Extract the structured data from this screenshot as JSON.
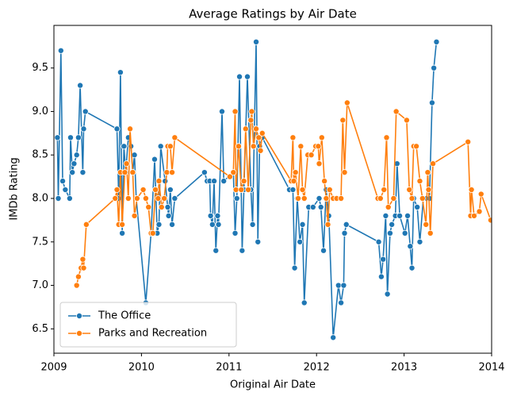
{
  "chart_data": {
    "type": "line",
    "title": "Average Ratings by Air Date",
    "x_label": "Original Air Date",
    "y_label": "IMDb Rating",
    "xlim": [
      2009,
      2014
    ],
    "xticks": [
      2009,
      2010,
      2011,
      2012,
      2013,
      2014
    ],
    "ylim": [
      6.22,
      9.99
    ],
    "yticks": [
      {
        "value": 6.5,
        "label": "6.5"
      },
      {
        "value": 7,
        "label": "7.0"
      },
      {
        "value": 7.5,
        "label": "7.5"
      },
      {
        "value": 8,
        "label": "8.0"
      },
      {
        "value": 8.5,
        "label": "8.5"
      },
      {
        "value": 9,
        "label": "9.0"
      },
      {
        "value": 9.5,
        "label": "9.5"
      }
    ],
    "grid": false,
    "legend": "lower left",
    "series": [
      {
        "name": "The Office",
        "color": "#1f77b4",
        "x": [
          2009.04,
          2009.05,
          2009.08,
          2009.1,
          2009.13,
          2009.18,
          2009.19,
          2009.21,
          2009.23,
          2009.26,
          2009.28,
          2009.3,
          2009.33,
          2009.34,
          2009.36,
          2009.72,
          2009.74,
          2009.76,
          2009.78,
          2009.8,
          2009.82,
          2009.85,
          2009.88,
          2009.9,
          2009.92,
          2009.94,
          2010.05,
          2010.11,
          2010.15,
          2010.18,
          2010.2,
          2010.22,
          2010.27,
          2010.3,
          2010.31,
          2010.33,
          2010.35,
          2010.38,
          2010.72,
          2010.75,
          2010.78,
          2010.79,
          2010.81,
          2010.83,
          2010.85,
          2010.87,
          2010.88,
          2010.92,
          2010.94,
          2011.05,
          2011.07,
          2011.09,
          2011.12,
          2011.15,
          2011.17,
          2011.21,
          2011.25,
          2011.27,
          2011.29,
          2011.31,
          2011.33,
          2011.35,
          2011.38,
          2011.69,
          2011.73,
          2011.75,
          2011.78,
          2011.81,
          2011.84,
          2011.86,
          2011.91,
          2011.96,
          2012.03,
          2012.05,
          2012.08,
          2012.11,
          2012.14,
          2012.19,
          2012.25,
          2012.28,
          2012.31,
          2012.32,
          2012.34,
          2012.71,
          2012.74,
          2012.76,
          2012.79,
          2012.81,
          2012.84,
          2012.86,
          2012.9,
          2012.92,
          2012.95,
          2013.01,
          2013.04,
          2013.07,
          2013.09,
          2013.11,
          2013.15,
          2013.18,
          2013.22,
          2013.26,
          2013.29,
          2013.32,
          2013.34,
          2013.37
        ],
        "values": [
          8.7,
          8.0,
          9.7,
          8.2,
          8.1,
          8.0,
          8.7,
          8.3,
          8.4,
          8.5,
          8.7,
          9.3,
          8.3,
          8.8,
          9.0,
          8.8,
          8.0,
          9.45,
          7.6,
          8.6,
          8.3,
          8.7,
          8.6,
          8.3,
          8.5,
          8.0,
          6.8,
          7.6,
          8.45,
          7.6,
          7.7,
          8.6,
          8.2,
          7.9,
          7.8,
          8.1,
          7.7,
          8.0,
          8.3,
          8.2,
          8.2,
          7.8,
          7.7,
          8.2,
          7.4,
          7.8,
          7.7,
          9.0,
          8.2,
          8.3,
          7.6,
          8.0,
          9.4,
          7.4,
          8.1,
          9.4,
          8.1,
          7.7,
          8.8,
          9.8,
          7.5,
          8.6,
          8.7,
          8.1,
          8.1,
          7.2,
          8.0,
          7.5,
          7.7,
          6.8,
          7.9,
          7.9,
          8.0,
          7.9,
          7.4,
          8.1,
          7.8,
          6.4,
          7.0,
          6.8,
          7.0,
          7.6,
          7.7,
          7.5,
          7.1,
          7.3,
          7.8,
          6.9,
          7.6,
          7.7,
          7.8,
          8.4,
          7.8,
          7.6,
          7.8,
          7.45,
          7.2,
          8.0,
          7.9,
          7.5,
          8.0,
          8.0,
          8.0,
          9.1,
          9.5,
          9.8
        ]
      },
      {
        "name": "Parks and Recreation",
        "color": "#ff7f0e",
        "x": [
          2009.26,
          2009.28,
          2009.31,
          2009.33,
          2009.34,
          2009.37,
          2009.7,
          2009.72,
          2009.74,
          2009.76,
          2009.78,
          2009.81,
          2009.83,
          2009.85,
          2009.87,
          2009.9,
          2009.92,
          2009.95,
          2010.02,
          2010.05,
          2010.08,
          2010.11,
          2010.13,
          2010.16,
          2010.19,
          2010.2,
          2010.23,
          2010.26,
          2010.29,
          2010.3,
          2010.33,
          2010.35,
          2010.38,
          2011.01,
          2011.05,
          2011.07,
          2011.08,
          2011.11,
          2011.14,
          2011.17,
          2011.19,
          2011.22,
          2011.25,
          2011.26,
          2011.28,
          2011.31,
          2011.34,
          2011.36,
          2011.38,
          2011.71,
          2011.73,
          2011.74,
          2011.76,
          2011.79,
          2011.82,
          2011.84,
          2011.86,
          2011.9,
          2011.94,
          2011.99,
          2012.02,
          2012.03,
          2012.06,
          2012.09,
          2012.11,
          2012.13,
          2012.15,
          2012.19,
          2012.23,
          2012.28,
          2012.3,
          2012.32,
          2012.35,
          2012.7,
          2012.73,
          2012.77,
          2012.8,
          2012.82,
          2012.88,
          2012.91,
          2013.03,
          2013.06,
          2013.09,
          2013.11,
          2013.14,
          2013.18,
          2013.21,
          2013.25,
          2013.27,
          2013.28,
          2013.3,
          2013.33,
          2013.73,
          2013.76,
          2013.77,
          2013.8,
          2013.86,
          2013.88,
          2013.99
        ],
        "values": [
          7.0,
          7.1,
          7.2,
          7.3,
          7.2,
          7.7,
          8.0,
          8.1,
          7.7,
          8.3,
          7.7,
          8.3,
          8.4,
          8.0,
          8.8,
          8.3,
          7.8,
          8.0,
          8.1,
          8.0,
          7.9,
          7.6,
          7.6,
          8.1,
          8.0,
          8.2,
          7.9,
          8.0,
          8.3,
          8.6,
          8.6,
          8.3,
          8.7,
          8.25,
          8.3,
          9.0,
          8.1,
          8.6,
          8.1,
          8.2,
          8.8,
          8.1,
          8.9,
          9.0,
          8.6,
          8.8,
          8.7,
          8.55,
          8.75,
          8.2,
          8.7,
          8.2,
          8.3,
          8.0,
          8.6,
          8.1,
          8.0,
          8.5,
          8.5,
          8.6,
          8.6,
          8.4,
          8.7,
          8.2,
          8.0,
          7.7,
          8.1,
          8.0,
          8.0,
          8.0,
          8.9,
          8.3,
          9.1,
          8.0,
          8.0,
          8.1,
          8.7,
          7.9,
          8.0,
          9.0,
          8.9,
          8.1,
          8.0,
          8.6,
          8.6,
          8.2,
          8.0,
          7.7,
          8.3,
          8.1,
          7.6,
          8.4,
          8.65,
          7.8,
          8.1,
          7.8,
          7.85,
          8.05,
          7.75
        ]
      }
    ]
  }
}
